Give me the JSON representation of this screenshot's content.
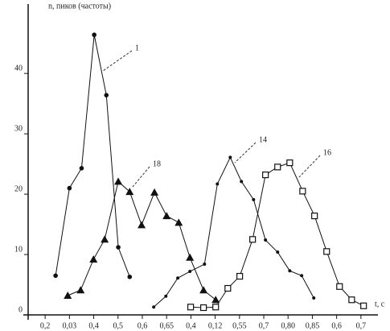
{
  "chart_data": {
    "type": "line",
    "ylabel": "n, пиков (частоты)",
    "xlabel": "t, с",
    "xlim": [
      -0.7,
      13.7
    ],
    "xticks": [
      {
        "value": 0,
        "label": "0,2"
      },
      {
        "value": 1,
        "label": "0,03"
      },
      {
        "value": 2,
        "label": "0,4"
      },
      {
        "value": 3,
        "label": "0,5"
      },
      {
        "value": 4,
        "label": "0,6"
      },
      {
        "value": 5,
        "label": "0,65"
      },
      {
        "value": 6,
        "label": "0,4"
      },
      {
        "value": 7,
        "label": "0,12"
      },
      {
        "value": 8,
        "label": "0,55"
      },
      {
        "value": 9,
        "label": "0,7"
      },
      {
        "value": 10,
        "label": "0,80"
      },
      {
        "value": 11,
        "label": "0,85"
      },
      {
        "value": 12,
        "label": "0,6"
      },
      {
        "value": 13,
        "label": "0,7"
      }
    ],
    "ylim": [
      0,
      51.5
    ],
    "yticks": [
      0,
      10,
      20,
      30,
      40
    ],
    "series": [
      {
        "name": "1",
        "color": "#111111",
        "marker": "circle",
        "x": [
          0.43,
          1.0,
          1.5,
          2.02,
          2.52,
          3.01,
          3.48
        ],
        "values": [
          6.5,
          21,
          24.3,
          46.4,
          36.4,
          11.2,
          6.3
        ]
      },
      {
        "name": "18",
        "color": "#111111",
        "marker": "triangle",
        "x": [
          0.93,
          1.46,
          1.99,
          2.45,
          3.01,
          3.48,
          3.97,
          4.5,
          5.0,
          5.5,
          5.96,
          6.52,
          7.02
        ],
        "values": [
          3.2,
          4.1,
          9.2,
          12.5,
          22.1,
          20.4,
          14.9,
          20.3,
          16.4,
          15.3,
          9.5,
          4.1,
          2.5
        ]
      },
      {
        "name": "14",
        "color": "#111111",
        "marker": "dot",
        "x": [
          4.47,
          4.97,
          5.46,
          5.96,
          6.56,
          7.09,
          7.62,
          8.08,
          8.58,
          9.07,
          9.57,
          10.07,
          10.56,
          11.06
        ],
        "values": [
          1.3,
          3.1,
          6.1,
          7.2,
          8.4,
          21.7,
          26.1,
          22.1,
          19.1,
          12.4,
          10.4,
          7.3,
          6.5,
          2.8
        ]
      },
      {
        "name": "16",
        "color": "#111111",
        "marker": "square",
        "x": [
          5.99,
          6.52,
          7.02,
          7.52,
          8.01,
          8.54,
          9.07,
          9.57,
          10.07,
          10.6,
          11.09,
          11.59,
          12.12,
          12.62,
          13.11
        ],
        "values": [
          1.3,
          1.2,
          1.3,
          4.4,
          6.4,
          12.5,
          23.2,
          24.5,
          25.2,
          20.5,
          16.4,
          10.5,
          4.7,
          2.5,
          1.5
        ]
      }
    ]
  }
}
